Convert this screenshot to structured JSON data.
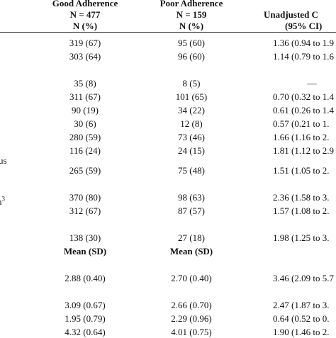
{
  "header": {
    "good": [
      "Good Adherence",
      "N = 477",
      "N (%)"
    ],
    "poor": [
      "Poor Adherence",
      "N = 159",
      "N (%)"
    ],
    "unadjusted": [
      "Unadjusted C",
      "(95% CI)"
    ]
  },
  "labels": [
    "us",
    {
      "text": "n",
      "sup": "3"
    }
  ],
  "rows": [
    {
      "good": "319 (67)",
      "poor": "95 (60)",
      "or": "1.36 (0.94 to 1.9"
    },
    {
      "good": "303 (64)",
      "poor": "96 (60)",
      "or": "1.14 (0.79 to 1.6"
    },
    {
      "good": "35 (8)",
      "poor": "8 (5)",
      "or": "—"
    },
    {
      "good": "311 (67)",
      "poor": "101 (65)",
      "or": "0.70 (0.32 to 1.4"
    },
    {
      "good": "90 (19)",
      "poor": "34 (22)",
      "or": "0.61 (0.26 to 1.4"
    },
    {
      "good": "30 (6)",
      "poor": "12 (8)",
      "or": "0.57 (0.21 to 1."
    },
    {
      "good": "280 (59)",
      "poor": "73 (46)",
      "or": "1.66 (1.16 to 2."
    },
    {
      "good": "116 (24)",
      "poor": "24 (15)",
      "or": "1.81 (1.12 to 2.9"
    },
    {
      "good": "265 (59)",
      "poor": "75 (48)",
      "or": "1.51 (1.05 to 2."
    },
    {
      "good": "370 (80)",
      "poor": "98 (63)",
      "or": "2.36 (1.58 to 3."
    },
    {
      "good": "312 (67)",
      "poor": "87 (57)",
      "or": "1.57 (1.08 to 2."
    },
    {
      "good": "138 (30)",
      "poor": "27 (18)",
      "or": "1.98 (1.25 to 3."
    },
    {
      "good": "Mean (SD)",
      "poor": "Mean (SD)"
    },
    {
      "good": "2.88 (0.40)",
      "poor": "2.70 (0.40)",
      "or": "3.46 (2.09 to 5.7"
    },
    {
      "good": "3.09 (0.67)",
      "poor": "2.66 (0.70)",
      "or": "2.47 (1.87 to 3."
    },
    {
      "good": "1.95 (0.79)",
      "poor": "2.29 (0.96)",
      "or": "0.64 (0.52 to 0."
    },
    {
      "good": "4.32 (0.64)",
      "poor": "4.01 (0.75)",
      "or": "1.90 (1.46 to 2."
    }
  ]
}
